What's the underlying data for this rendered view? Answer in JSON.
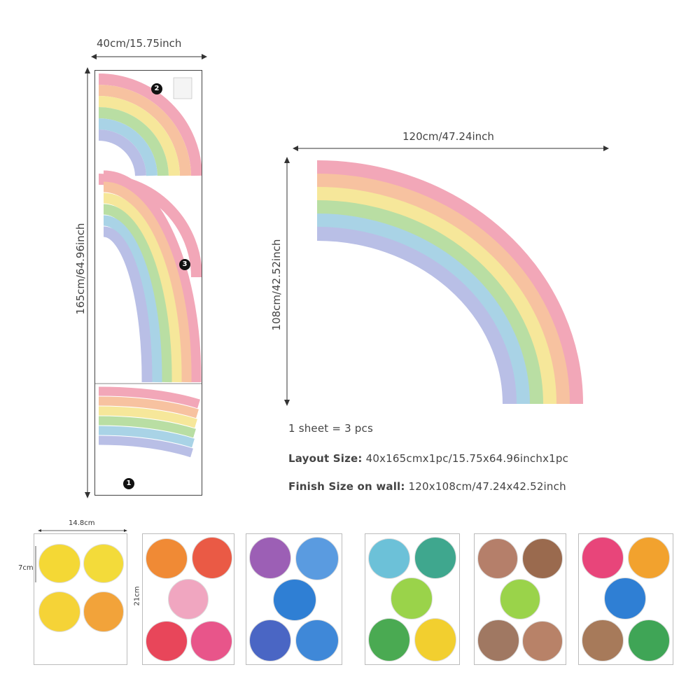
{
  "layout_sheet": {
    "width_label": "40cm/15.75inch",
    "height_label": "165cm/64.96inch",
    "pieces": [
      "1",
      "2",
      "3"
    ]
  },
  "finished": {
    "width_label": "120cm/47.24inch",
    "height_label": "108cm/42.52inch"
  },
  "info": {
    "line1": "1 sheet = 3 pcs",
    "line2_label": "Layout Size:",
    "line2_value": "40x165cmx1pc/15.75x64.96inchx1pc",
    "line3_label": "Finish Size on wall:",
    "line3_value": "120x108cm/47.24x42.52inch"
  },
  "dot_sheet": {
    "width_label": "14.8cm",
    "height_label": "21cm",
    "dot_height_label": "7cm",
    "dot_width_label": "7cm"
  },
  "colors": {
    "rainbow": [
      "#f2a7b8",
      "#f7c2a0",
      "#f6e79a",
      "#b9dea3",
      "#a9d3e6",
      "#b9bfe6"
    ],
    "sheet1": [
      "#f4d835",
      "#f3db3a",
      "#f5d337",
      "#f2a33a"
    ],
    "sheet2": [
      "#f08a35",
      "#ea5a45",
      "#f0a6c0",
      "#e8465a",
      "#e8558a"
    ],
    "sheet3": [
      "#9c5fb5",
      "#5a9be0",
      "#2f7fd4",
      "#4a66c4",
      "#3f88d8"
    ],
    "sheet4": [
      "#6cc1d8",
      "#3fa78e",
      "#9ad34a",
      "#4aaa52",
      "#f2cf2f"
    ],
    "sheet5": [
      "#b57f6a",
      "#9a6a4e",
      "#9ad34a",
      "#a07862",
      "#b88268"
    ],
    "sheet6": [
      "#e8457a",
      "#f2a22e",
      "#2f7fd4",
      "#a77a5a",
      "#3fa556"
    ]
  }
}
